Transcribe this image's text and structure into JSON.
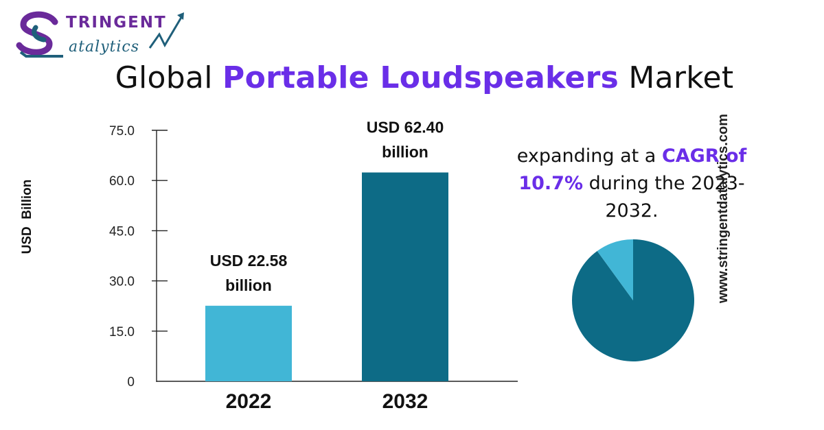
{
  "logo": {
    "line1": "TRINGENT",
    "line2": "atalytics"
  },
  "title": {
    "pre": "Global ",
    "highlight": "Portable Loudspeakers",
    "post": " Market"
  },
  "y_axis_label": "USD  Billion",
  "cagr": {
    "pre": "expanding at a ",
    "highlight": "CAGR of 10.7%",
    "post": " during the 2023-2032."
  },
  "website": "www.stringentdatalytics.com",
  "colors": {
    "accent": "#6a2ee8",
    "bar_2022": "#41b6d6",
    "bar_2032": "#0d6b86",
    "pie_main": "#0d6b86",
    "pie_small": "#41b6d6"
  },
  "chart_data": [
    {
      "type": "bar",
      "categories": [
        "2022",
        "2032"
      ],
      "values": [
        22.58,
        62.4
      ],
      "data_labels": [
        [
          "USD 22.58",
          "billion"
        ],
        [
          "USD 62.40",
          "billion"
        ]
      ],
      "ylabel": "USD  Billion",
      "ylim": [
        0,
        75
      ],
      "yticks": [
        "0",
        "15.0",
        "30.0",
        "45.0",
        "60.0",
        "75.0"
      ],
      "ytick_values": [
        0,
        15,
        30,
        45,
        60,
        75
      ],
      "grid": false
    },
    {
      "type": "pie",
      "values": [
        90,
        10
      ],
      "colors": [
        "#0d6b86",
        "#41b6d6"
      ]
    }
  ]
}
